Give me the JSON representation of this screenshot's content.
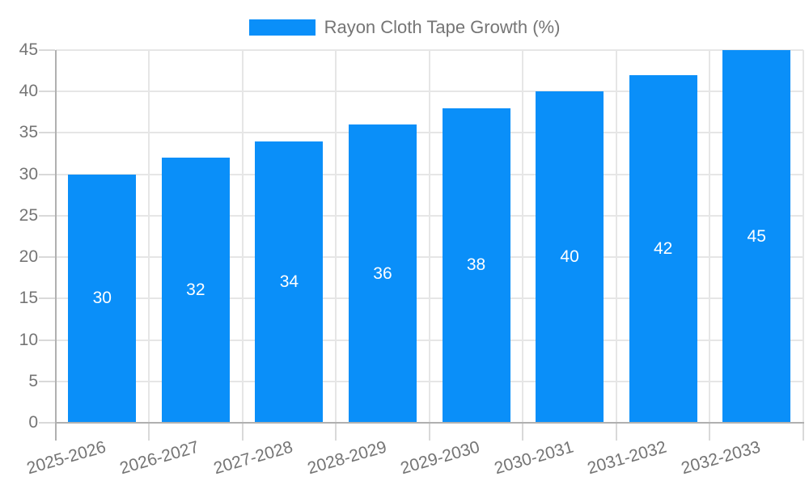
{
  "legend": {
    "label": "Rayon Cloth Tape Growth (%)"
  },
  "chart_data": {
    "type": "bar",
    "categories": [
      "2025-2026",
      "2026-2027",
      "2027-2028",
      "2028-2029",
      "2029-2030",
      "2030-2031",
      "2031-2032",
      "2032-2033"
    ],
    "values": [
      30,
      32,
      34,
      36,
      38,
      40,
      42,
      45
    ],
    "series_name": "Rayon Cloth Tape Growth (%)",
    "bar_labels": [
      "30",
      "32",
      "34",
      "36",
      "38",
      "40",
      "42",
      "45"
    ],
    "ylim": [
      0,
      45
    ],
    "yticks": [
      0,
      5,
      10,
      15,
      20,
      25,
      30,
      35,
      40,
      45
    ],
    "xlabel": "",
    "ylabel": "",
    "grid": true,
    "legend_position": "top",
    "x_labels_rotated": true
  },
  "colors": {
    "bar": "#0a8ff9",
    "axis_text": "#757575",
    "grid_line": "#e6e6e6",
    "axis_line": "#b0b0b0",
    "tick": "#d9d9d9",
    "bar_label": "#ffffff",
    "background": "#ffffff"
  }
}
